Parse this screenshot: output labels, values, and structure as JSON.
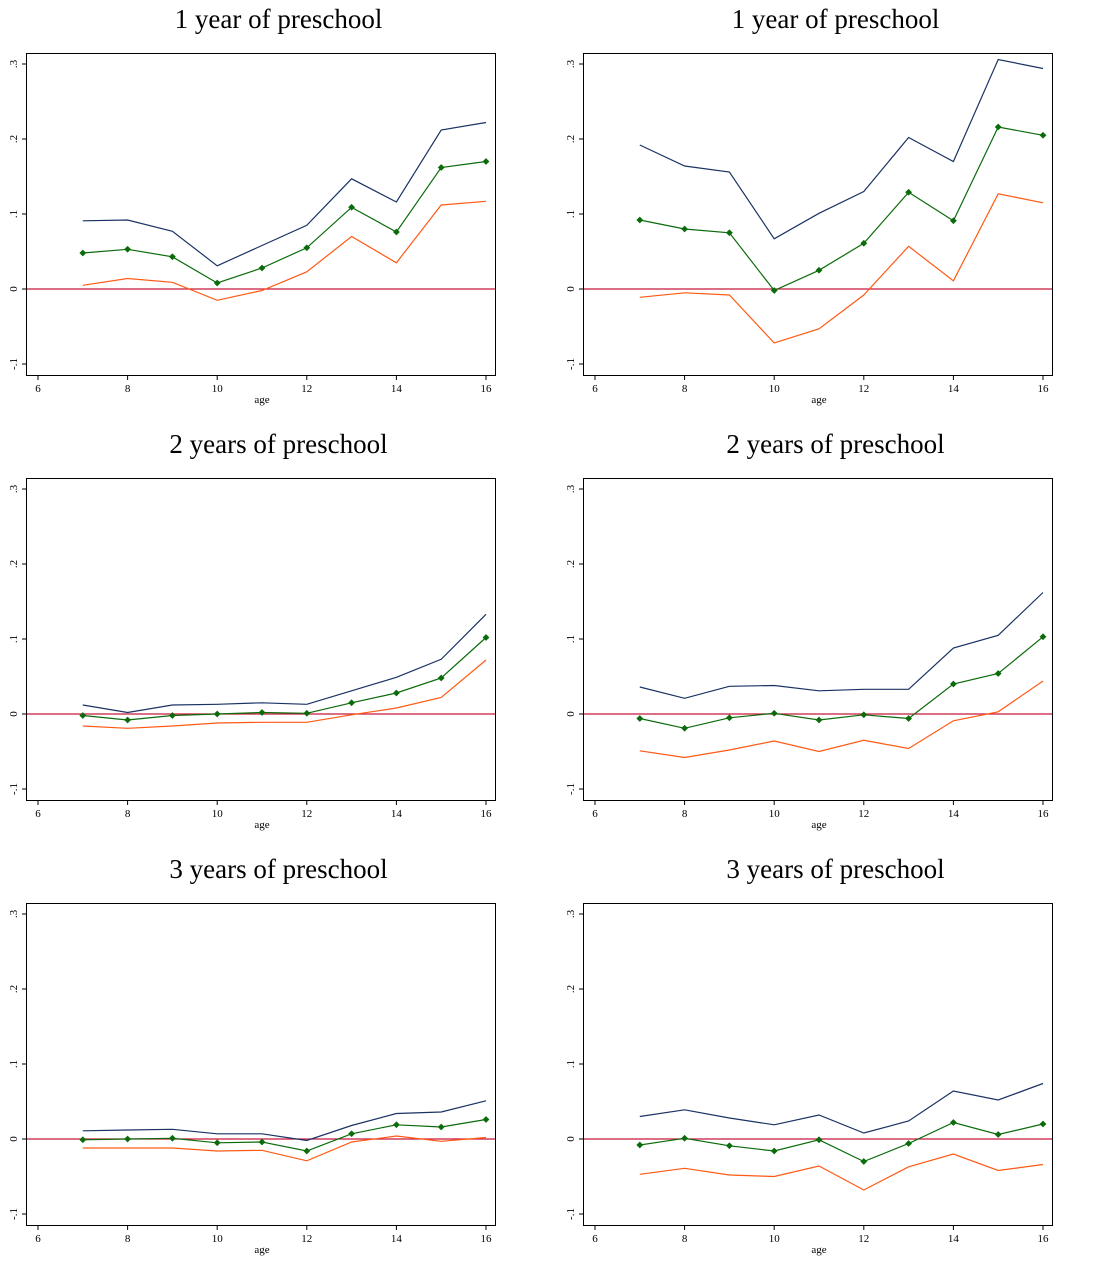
{
  "colors": {
    "upper": "#1a3264",
    "estimate": "#0a6b0a",
    "lower": "#ff5a14",
    "zero_line": "#c8183c"
  },
  "chart_data": [
    {
      "type": "line",
      "title": "1 year of preschool",
      "xlabel": "age",
      "ylabel": "",
      "xlim": [
        6,
        16
      ],
      "ylim": [
        -0.1,
        0.3
      ],
      "xticks": [
        6,
        8,
        10,
        12,
        14,
        16
      ],
      "xtick_labels": [
        "6",
        "8",
        "10",
        "12",
        "14",
        "16"
      ],
      "yticks": [
        -0.1,
        0,
        0.1,
        0.2,
        0.3
      ],
      "ytick_labels": [
        "-.1",
        "0",
        ".1",
        ".2",
        ".3"
      ],
      "reference_line": 0,
      "x": [
        7,
        8,
        9,
        10,
        11,
        12,
        13,
        14,
        15,
        16
      ],
      "series": [
        {
          "role": "upper",
          "values": [
            0.091,
            0.092,
            0.077,
            0.031,
            0.058,
            0.085,
            0.147,
            0.116,
            0.212,
            0.222
          ]
        },
        {
          "role": "estimate",
          "markers": true,
          "values": [
            0.048,
            0.053,
            0.043,
            0.008,
            0.028,
            0.055,
            0.109,
            0.076,
            0.162,
            0.17
          ]
        },
        {
          "role": "lower",
          "values": [
            0.005,
            0.014,
            0.009,
            -0.015,
            -0.002,
            0.023,
            0.07,
            0.035,
            0.112,
            0.117
          ]
        }
      ]
    },
    {
      "type": "line",
      "title": "1 year of preschool",
      "xlabel": "age",
      "ylabel": "",
      "xlim": [
        6,
        16
      ],
      "ylim": [
        -0.1,
        0.3
      ],
      "xticks": [
        6,
        8,
        10,
        12,
        14,
        16
      ],
      "xtick_labels": [
        "6",
        "8",
        "10",
        "12",
        "14",
        "16"
      ],
      "yticks": [
        -0.1,
        0,
        0.1,
        0.2,
        0.3
      ],
      "ytick_labels": [
        "-.1",
        "0",
        ".1",
        ".2",
        ".3"
      ],
      "reference_line": 0,
      "x": [
        7,
        8,
        9,
        10,
        11,
        12,
        13,
        14,
        15,
        16
      ],
      "series": [
        {
          "role": "upper",
          "values": [
            0.192,
            0.164,
            0.156,
            0.067,
            0.101,
            0.13,
            0.202,
            0.17,
            0.306,
            0.294
          ]
        },
        {
          "role": "estimate",
          "markers": true,
          "values": [
            0.092,
            0.08,
            0.075,
            -0.002,
            0.025,
            0.061,
            0.129,
            0.091,
            0.216,
            0.205
          ]
        },
        {
          "role": "lower",
          "values": [
            -0.011,
            -0.005,
            -0.008,
            -0.072,
            -0.053,
            -0.008,
            0.057,
            0.011,
            0.127,
            0.115
          ]
        }
      ]
    },
    {
      "type": "line",
      "title": "2 years of preschool",
      "xlabel": "age",
      "ylabel": "",
      "xlim": [
        6,
        16
      ],
      "ylim": [
        -0.1,
        0.3
      ],
      "xticks": [
        6,
        8,
        10,
        12,
        14,
        16
      ],
      "xtick_labels": [
        "6",
        "8",
        "10",
        "12",
        "14",
        "16"
      ],
      "yticks": [
        -0.1,
        0,
        0.1,
        0.2,
        0.3
      ],
      "ytick_labels": [
        "-.1",
        "0",
        ".1",
        ".2",
        ".3"
      ],
      "reference_line": 0,
      "x": [
        7,
        8,
        9,
        10,
        11,
        12,
        13,
        14,
        15,
        16
      ],
      "series": [
        {
          "role": "upper",
          "values": [
            0.012,
            0.002,
            0.012,
            0.013,
            0.015,
            0.013,
            0.031,
            0.049,
            0.073,
            0.133
          ]
        },
        {
          "role": "estimate",
          "markers": true,
          "values": [
            -0.002,
            -0.008,
            -0.002,
            0.0,
            0.002,
            0.001,
            0.015,
            0.028,
            0.048,
            0.102
          ]
        },
        {
          "role": "lower",
          "values": [
            -0.016,
            -0.019,
            -0.016,
            -0.012,
            -0.011,
            -0.011,
            -0.001,
            0.008,
            0.022,
            0.072
          ]
        }
      ]
    },
    {
      "type": "line",
      "title": "2 years of preschool",
      "xlabel": "age",
      "ylabel": "",
      "xlim": [
        6,
        16
      ],
      "ylim": [
        -0.1,
        0.3
      ],
      "xticks": [
        6,
        8,
        10,
        12,
        14,
        16
      ],
      "xtick_labels": [
        "6",
        "8",
        "10",
        "12",
        "14",
        "16"
      ],
      "yticks": [
        -0.1,
        0,
        0.1,
        0.2,
        0.3
      ],
      "ytick_labels": [
        "-.1",
        "0",
        ".1",
        ".2",
        ".3"
      ],
      "reference_line": 0,
      "x": [
        7,
        8,
        9,
        10,
        11,
        12,
        13,
        14,
        15,
        16
      ],
      "series": [
        {
          "role": "upper",
          "values": [
            0.036,
            0.021,
            0.037,
            0.038,
            0.031,
            0.033,
            0.033,
            0.088,
            0.105,
            0.162
          ]
        },
        {
          "role": "estimate",
          "markers": true,
          "values": [
            -0.006,
            -0.019,
            -0.005,
            0.001,
            -0.008,
            -0.001,
            -0.006,
            0.04,
            0.054,
            0.103
          ]
        },
        {
          "role": "lower",
          "values": [
            -0.049,
            -0.058,
            -0.048,
            -0.036,
            -0.05,
            -0.035,
            -0.046,
            -0.009,
            0.003,
            0.044
          ]
        }
      ]
    },
    {
      "type": "line",
      "title": "3 years of preschool",
      "xlabel": "age",
      "ylabel": "",
      "xlim": [
        6,
        16
      ],
      "ylim": [
        -0.1,
        0.3
      ],
      "xticks": [
        6,
        8,
        10,
        12,
        14,
        16
      ],
      "xtick_labels": [
        "6",
        "8",
        "10",
        "12",
        "14",
        "16"
      ],
      "yticks": [
        -0.1,
        0,
        0.1,
        0.2,
        0.3
      ],
      "ytick_labels": [
        "-.1",
        "0",
        ".1",
        ".2",
        ".3"
      ],
      "reference_line": 0,
      "x": [
        7,
        8,
        9,
        10,
        11,
        12,
        13,
        14,
        15,
        16
      ],
      "series": [
        {
          "role": "upper",
          "values": [
            0.011,
            0.012,
            0.013,
            0.007,
            0.007,
            -0.002,
            0.018,
            0.034,
            0.036,
            0.051
          ]
        },
        {
          "role": "estimate",
          "markers": true,
          "values": [
            -0.001,
            0.0,
            0.001,
            -0.005,
            -0.004,
            -0.016,
            0.007,
            0.019,
            0.016,
            0.026
          ]
        },
        {
          "role": "lower",
          "values": [
            -0.012,
            -0.012,
            -0.012,
            -0.016,
            -0.015,
            -0.029,
            -0.004,
            0.004,
            -0.003,
            0.002
          ]
        }
      ]
    },
    {
      "type": "line",
      "title": "3 years of preschool",
      "xlabel": "age",
      "ylabel": "",
      "xlim": [
        6,
        16
      ],
      "ylim": [
        -0.1,
        0.3
      ],
      "xticks": [
        6,
        8,
        10,
        12,
        14,
        16
      ],
      "xtick_labels": [
        "6",
        "8",
        "10",
        "12",
        "14",
        "16"
      ],
      "yticks": [
        -0.1,
        0,
        0.1,
        0.2,
        0.3
      ],
      "ytick_labels": [
        "-.1",
        "0",
        ".1",
        ".2",
        ".3"
      ],
      "reference_line": 0,
      "x": [
        7,
        8,
        9,
        10,
        11,
        12,
        13,
        14,
        15,
        16
      ],
      "series": [
        {
          "role": "upper",
          "values": [
            0.03,
            0.039,
            0.028,
            0.019,
            0.032,
            0.008,
            0.024,
            0.064,
            0.052,
            0.074
          ]
        },
        {
          "role": "estimate",
          "markers": true,
          "values": [
            -0.008,
            0.001,
            -0.009,
            -0.016,
            -0.001,
            -0.03,
            -0.006,
            0.022,
            0.006,
            0.02
          ]
        },
        {
          "role": "lower",
          "values": [
            -0.047,
            -0.039,
            -0.048,
            -0.05,
            -0.036,
            -0.068,
            -0.037,
            -0.02,
            -0.042,
            -0.034
          ]
        }
      ]
    }
  ]
}
